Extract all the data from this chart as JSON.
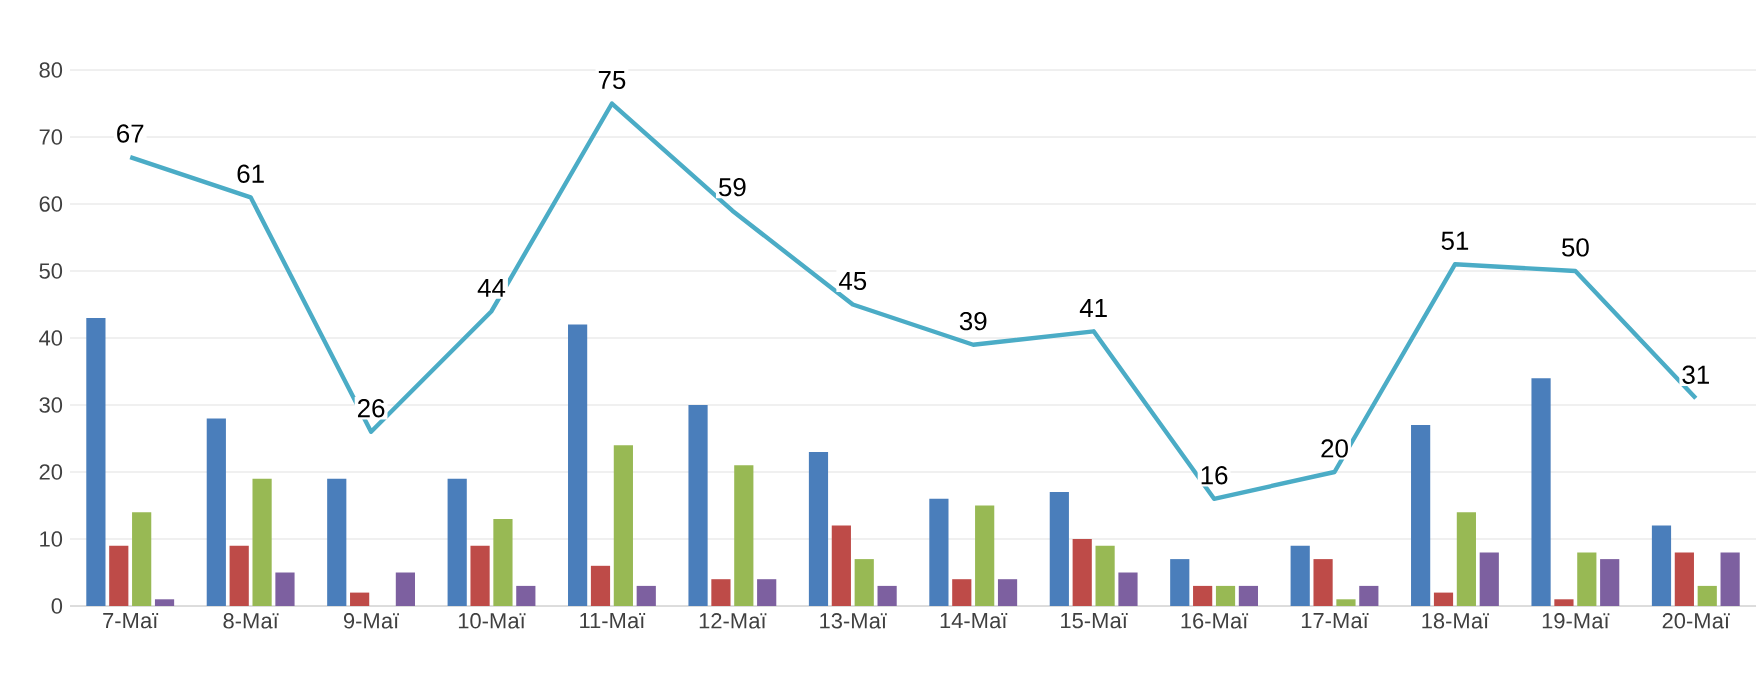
{
  "chart_data": {
    "type": "bar",
    "categories": [
      "7-Маї",
      "8-Маї",
      "9-Маї",
      "10-Маї",
      "11-Маї",
      "12-Маї",
      "13-Маї",
      "14-Маї",
      "15-Маї",
      "16-Маї",
      "17-Маї",
      "18-Маї",
      "19-Маї",
      "20-Маї"
    ],
    "series": [
      {
        "color": "#4a7ebb",
        "values": [
          43,
          28,
          19,
          19,
          42,
          30,
          23,
          16,
          17,
          7,
          9,
          27,
          34,
          12
        ]
      },
      {
        "color": "#be4b48",
        "values": [
          9,
          9,
          2,
          9,
          6,
          4,
          12,
          4,
          10,
          3,
          7,
          2,
          1,
          8
        ]
      },
      {
        "color": "#98b954",
        "values": [
          14,
          19,
          0,
          13,
          24,
          21,
          7,
          15,
          9,
          3,
          1,
          14,
          8,
          3
        ]
      },
      {
        "color": "#7d60a0",
        "values": [
          1,
          5,
          5,
          3,
          3,
          4,
          3,
          4,
          5,
          3,
          3,
          8,
          7,
          8
        ]
      },
      {
        "type": "line",
        "color": "#4bacc6",
        "values": [
          67,
          61,
          26,
          44,
          75,
          59,
          45,
          39,
          41,
          16,
          20,
          51,
          50,
          31
        ],
        "value_labels": [
          "67",
          "61",
          "26",
          "44",
          "75",
          "59",
          "45",
          "39",
          "41",
          "16",
          "20",
          "51",
          "50",
          "31"
        ]
      }
    ],
    "ylim": [
      0,
      80
    ],
    "yticks": [
      0,
      10,
      20,
      30,
      40,
      50,
      60,
      70,
      80
    ],
    "grid": "y"
  }
}
